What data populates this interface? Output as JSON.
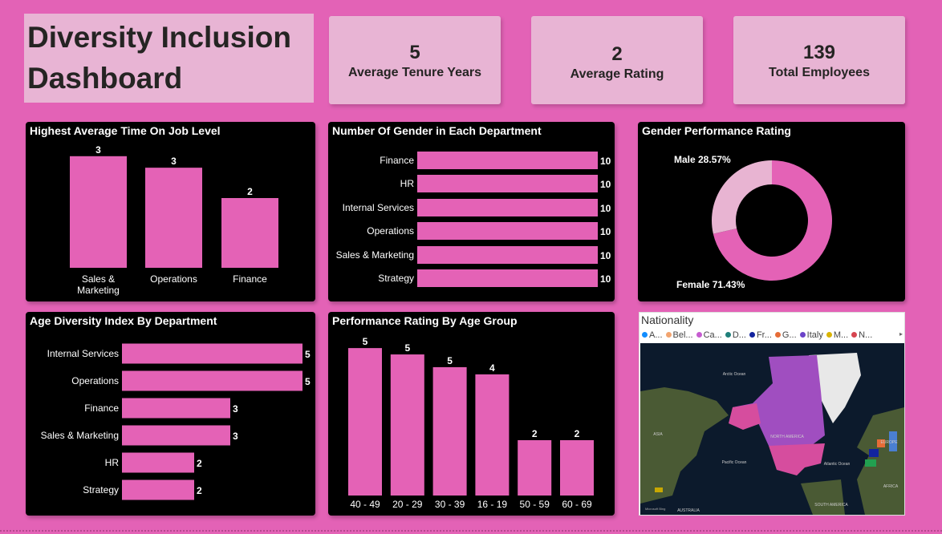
{
  "title": "Diversity Inclusion Dashboard",
  "title_lines": [
    "Diversity Inclusion",
    "Dashboard"
  ],
  "colors": {
    "background": "#e362b6",
    "card": "#e8b4d4",
    "bar": "#e462b6",
    "male": "#e8b4d2",
    "panel": "#000000"
  },
  "kpis": [
    {
      "value": "5",
      "label": "Average Tenure Years"
    },
    {
      "value": "2",
      "label": "Average Rating"
    },
    {
      "value": "139",
      "label": "Total Employees"
    }
  ],
  "chart_data": [
    {
      "type": "bar",
      "title": "Highest Average Time On Job Level",
      "categories": [
        "Sales & Marketing",
        "Operations",
        "Finance"
      ],
      "values": [
        3.2,
        2.87,
        2.0
      ],
      "data_labels": [
        "3",
        "3",
        "2"
      ]
    },
    {
      "type": "bar",
      "orientation": "horizontal",
      "title": "Number Of Gender in Each Department",
      "categories": [
        "Finance",
        "HR",
        "Internal Services",
        "Operations",
        "Sales & Marketing",
        "Strategy"
      ],
      "values": [
        10,
        10,
        10,
        10,
        10,
        10
      ],
      "data_labels": [
        "10",
        "10",
        "10",
        "10",
        "10",
        "10"
      ]
    },
    {
      "type": "pie",
      "donut": true,
      "title": "Gender Performance Rating",
      "categories": [
        "Female",
        "Male"
      ],
      "values": [
        71.43,
        28.57
      ],
      "data_labels": [
        "Female 71.43%",
        "Male 28.57%"
      ]
    },
    {
      "type": "bar",
      "orientation": "horizontal",
      "title": "Age Diversity Index By Department",
      "categories": [
        "Internal Services",
        "Operations",
        "Finance",
        "Sales & Marketing",
        "HR",
        "Strategy"
      ],
      "values": [
        5,
        5,
        3,
        3,
        2,
        2
      ],
      "data_labels": [
        "5",
        "5",
        "3",
        "3",
        "2",
        "2"
      ]
    },
    {
      "type": "bar",
      "title": "Performance Rating By Age Group",
      "categories": [
        "40 - 49",
        "20 - 29",
        "30 - 39",
        "16 - 19",
        "50 - 59",
        "60 - 69"
      ],
      "values": [
        5.33,
        5.1,
        4.64,
        4.38,
        2.0,
        2.0
      ],
      "data_labels": [
        "5",
        "5",
        "5",
        "4",
        "2",
        "2"
      ]
    }
  ],
  "map": {
    "title": "Nationality",
    "legend": [
      {
        "label": "A...",
        "color": "#118dff"
      },
      {
        "label": "Bel...",
        "color": "#f2a46f"
      },
      {
        "label": "Ca...",
        "color": "#c65cd0"
      },
      {
        "label": "D...",
        "color": "#1f7f7a"
      },
      {
        "label": "Fr...",
        "color": "#12239e"
      },
      {
        "label": "G...",
        "color": "#e66c37"
      },
      {
        "label": "Italy",
        "color": "#6b43c8"
      },
      {
        "label": "M...",
        "color": "#d9b300"
      },
      {
        "label": "N...",
        "color": "#d64550"
      }
    ],
    "labels": [
      "Arctic Ocean",
      "Pacific Ocean",
      "Atlantic Ocean",
      "NORTH AMERICA",
      "ASIA",
      "EUROPE",
      "AFRICA",
      "SOUTH AMERICA",
      "AUSTRALIA"
    ],
    "attribution": "Microsoft Bing"
  }
}
